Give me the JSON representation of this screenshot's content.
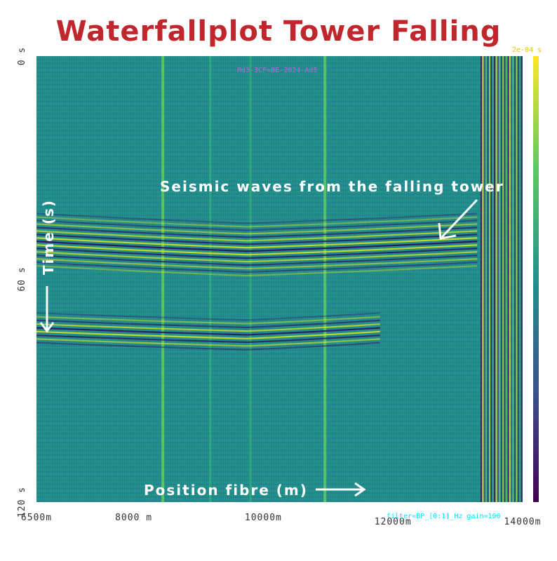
{
  "title": "Waterfallplot Tower Falling",
  "colors": {
    "title": "#c0272d",
    "background": "#21918c",
    "annotation": "#ffffff",
    "status_text": "#00e5ff",
    "meta_text": "#b565e8"
  },
  "overlay": {
    "meta_text": "Rd3-3CF=BE-2024-Ad5",
    "filter_text": "filter=BP_[0:1]_Hz gain=100"
  },
  "annotations": {
    "event_label": "Seismic waves from the falling tower",
    "time_label": "Time (s)",
    "position_label": "Position fibre (m)"
  },
  "colorbar": {
    "colormap": "viridis",
    "top_label": "2e-04 s"
  },
  "chart_data": {
    "type": "heatmap",
    "title": "Waterfallplot Tower Falling",
    "xlabel": "Position fibre (m)",
    "ylabel": "Time (s)",
    "xlim": [
      6500,
      14000
    ],
    "ylim": [
      0,
      120
    ],
    "y_inverted": true,
    "colormap": "viridis",
    "x_ticks": [
      {
        "value": 6500,
        "label": "6500m"
      },
      {
        "value": 8000,
        "label": "8000 m"
      },
      {
        "value": 10000,
        "label": "10000m"
      },
      {
        "value": 12000,
        "label": "12000m"
      },
      {
        "value": 14000,
        "label": "14000m"
      }
    ],
    "y_ticks": [
      {
        "value": 0,
        "label": "0 s"
      },
      {
        "value": 60,
        "label": "60 s"
      },
      {
        "value": 120,
        "label": "120 s"
      }
    ],
    "vertical_channel_lines_m": [
      8450,
      9180,
      9800,
      10950,
      13650,
      13750,
      13830
    ],
    "event_arrival": {
      "description": "Seismic waves from the falling tower",
      "first_packet": {
        "t_start_s": 45,
        "t_end_s": 60,
        "x_min_m": 6500,
        "x_max_m": 13300
      },
      "second_packet": {
        "t_start_s": 71,
        "t_end_s": 80,
        "x_min_m": 6500,
        "x_max_m": 11800
      },
      "apex_position_m": 9750
    },
    "grid": false
  }
}
